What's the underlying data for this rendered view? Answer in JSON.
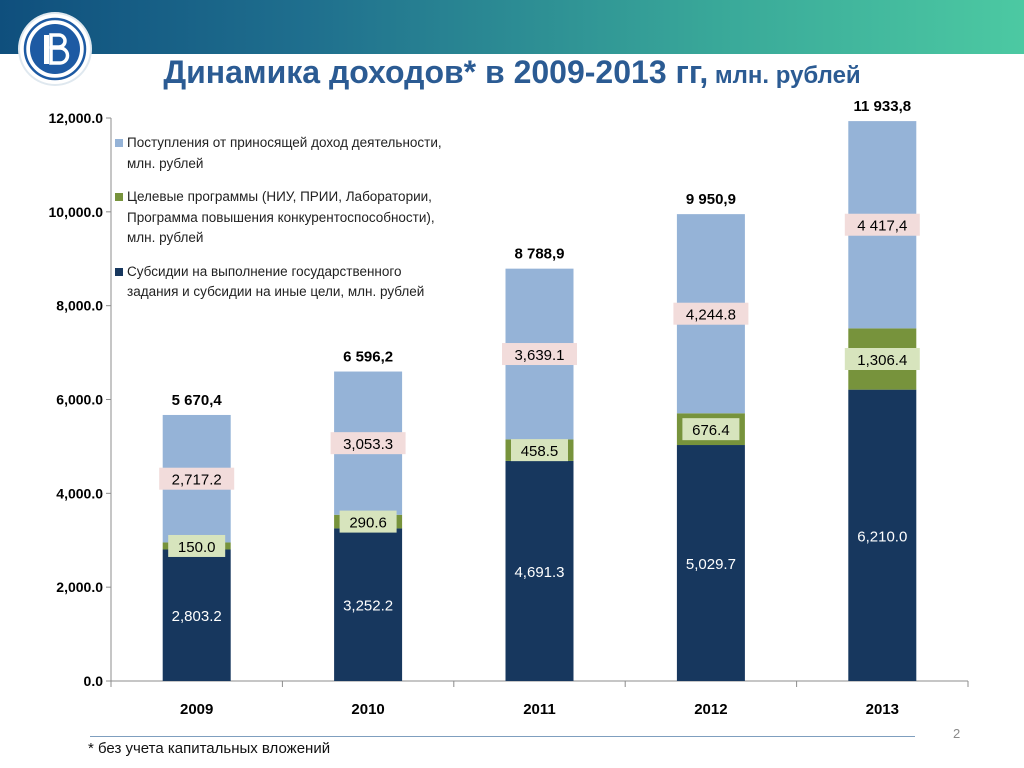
{
  "title": {
    "main": "Динамика доходов* в 2009-2013 гг,",
    "unit": " млн. рублей"
  },
  "legend": [
    {
      "label": "Поступления от приносящей доход деятельности, млн. рублей",
      "color": "#95b3d7"
    },
    {
      "label": "Целевые программы (НИУ, ПРИИ, Лаборатории,  Программа повышения конкурентоспособности), млн. рублей",
      "color": "#77933c"
    },
    {
      "label": "Субсидии на выполнение государственного задания  и субсидии на иные цели, млн. рублей",
      "color": "#17375e"
    }
  ],
  "chart_data": {
    "type": "bar",
    "stacked": true,
    "categories": [
      "2009",
      "2010",
      "2011",
      "2012",
      "2013"
    ],
    "series": [
      {
        "name": "Субсидии на выполнение государственного задания  и субсидии на иные цели, млн. рублей",
        "color": "#17375e",
        "values": [
          2803.2,
          3252.2,
          4691.3,
          5029.7,
          6210.0
        ],
        "labels": [
          "2,803.2",
          "3,252.2",
          "4,691.3",
          "5,029.7",
          "6,210.0"
        ],
        "label_style": "plain-white"
      },
      {
        "name": "Целевые программы (НИУ, ПРИИ, Лаборатории,  Программа повышения конкурентоспособности), млн. рублей",
        "color": "#77933c",
        "values": [
          150.0,
          290.6,
          458.5,
          676.4,
          1306.4
        ],
        "labels": [
          "150.0",
          "290.6",
          "458.5",
          "676.4",
          "1,306.4"
        ],
        "label_style": "box-green"
      },
      {
        "name": "Поступления от приносящей доход деятельности, млн. рублей",
        "color": "#95b3d7",
        "values": [
          2717.2,
          3053.3,
          3639.1,
          4244.8,
          4417.4
        ],
        "labels": [
          "2,717.2",
          "3,053.3",
          "3,639.1",
          "4,244.8",
          "4 417,4"
        ],
        "label_style": "box-pink"
      }
    ],
    "totals": [
      5670.4,
      6596.2,
      8788.9,
      9950.9,
      11933.8
    ],
    "total_labels": [
      "5 670,4",
      "6 596,2",
      "8 788,9",
      "9 950,9",
      "11 933,8"
    ],
    "ylim": [
      0,
      12000
    ],
    "yticks": [
      0,
      2000,
      4000,
      6000,
      8000,
      10000,
      12000
    ],
    "ytick_labels": [
      "0.0",
      "2,000.0",
      "4,000.0",
      "6,000.0",
      "8,000.0",
      "10,000.0",
      "12,000.0"
    ],
    "grid": false,
    "legend_position": "top-left"
  },
  "footnote": "* без учета капитальных вложений",
  "page_number": "2"
}
